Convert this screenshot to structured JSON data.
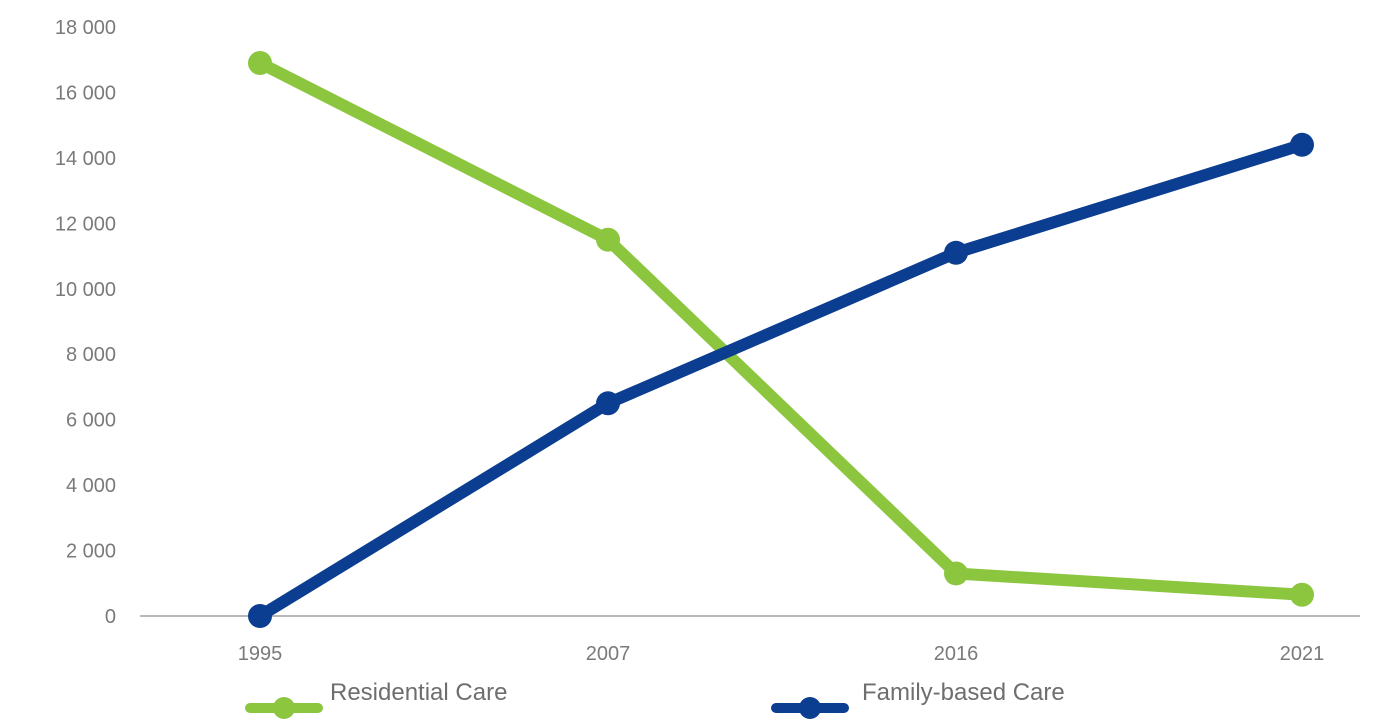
{
  "chart_data": {
    "type": "line",
    "categories": [
      "1995",
      "2007",
      "2016",
      "2021"
    ],
    "y_tick_labels": [
      "0",
      "2 000",
      "4 000",
      "6 000",
      "8 000",
      "10 000",
      "12 000",
      "14 000",
      "16 000",
      "18 000"
    ],
    "y_ticks": [
      0,
      2000,
      4000,
      6000,
      8000,
      10000,
      12000,
      14000,
      16000,
      18000
    ],
    "ylim": [
      0,
      18000
    ],
    "grid": false,
    "legend_position": "bottom",
    "series": [
      {
        "name": "Residential Care",
        "color": "#8cc63f",
        "values": [
          16900,
          11500,
          1300,
          650
        ]
      },
      {
        "name": "Family-based Care",
        "color": "#0b3d91",
        "values": [
          0,
          6500,
          11100,
          14400
        ]
      }
    ]
  }
}
